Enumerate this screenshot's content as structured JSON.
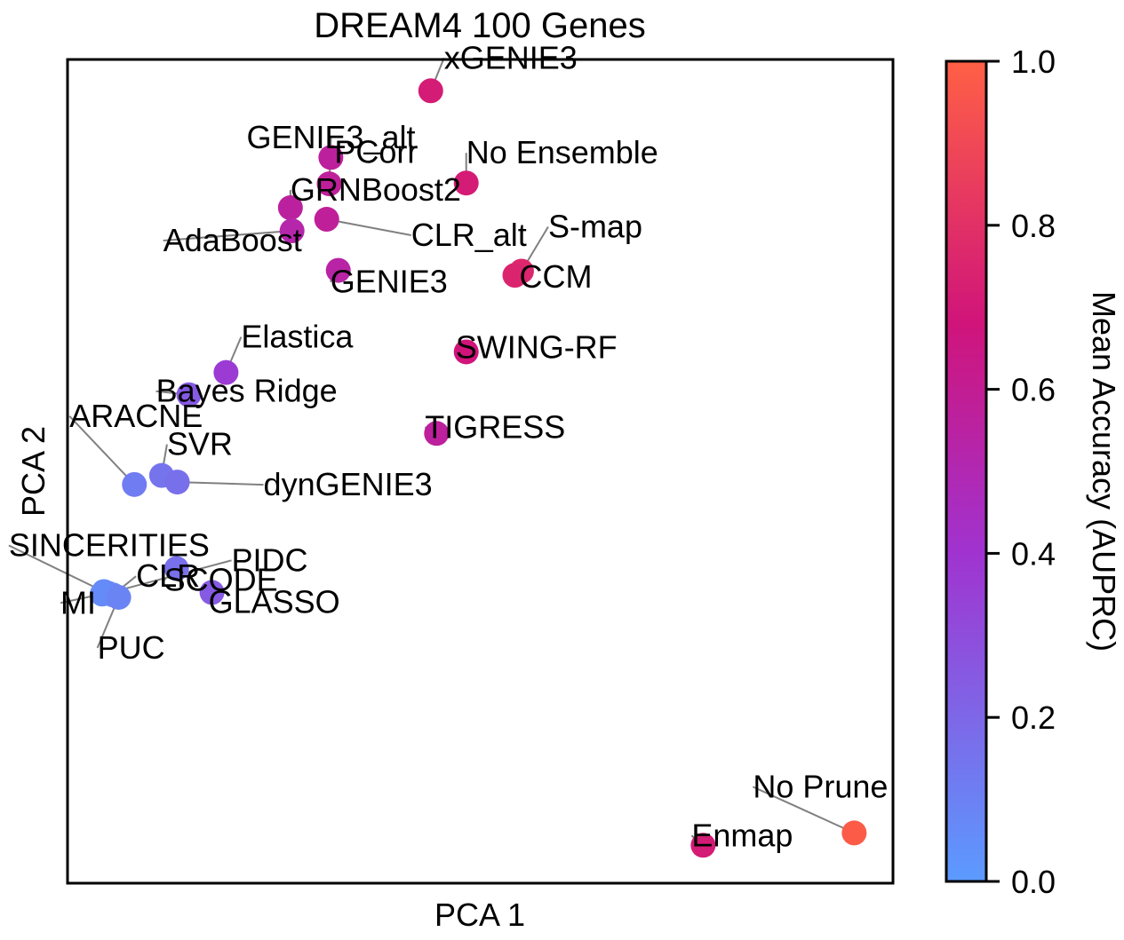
{
  "chart_data": {
    "type": "scatter",
    "title": "DREAM4 100 Genes",
    "xlabel": "PCA 1",
    "ylabel": "PCA 2",
    "grid": false,
    "x_ticks_shown": false,
    "y_ticks_shown": false,
    "xlim": [
      0,
      100
    ],
    "ylim": [
      0,
      100
    ],
    "colorbar": {
      "label": "Mean Accuracy (AUPRC)",
      "range": [
        0.0,
        1.0
      ],
      "ticks": [
        "0.0",
        "0.2",
        "0.4",
        "0.6",
        "0.8",
        "1.0"
      ],
      "colors": [
        "#5b9bff",
        "#a033d0",
        "#d0147a",
        "#ff6045"
      ]
    },
    "points": [
      {
        "name": "xGENIE3",
        "x": 44.0,
        "y": 96.2,
        "value": 0.71
      },
      {
        "name": "GENIE3_alt",
        "x": 31.7,
        "y": 84.9,
        "value": 0.58
      },
      {
        "name": "PCorr",
        "x": 31.9,
        "y": 88.1,
        "value": 0.57
      },
      {
        "name": "No Ensemble",
        "x": 48.3,
        "y": 85.0,
        "value": 0.71
      },
      {
        "name": "GRNBoost2",
        "x": 27.0,
        "y": 82.0,
        "value": 0.56
      },
      {
        "name": "CLR_alt",
        "x": 31.4,
        "y": 80.6,
        "value": 0.58
      },
      {
        "name": "AdaBoost",
        "x": 27.2,
        "y": 79.2,
        "value": 0.52
      },
      {
        "name": "GENIE3",
        "x": 32.8,
        "y": 74.4,
        "value": 0.54
      },
      {
        "name": "S-map",
        "x": 55.0,
        "y": 74.3,
        "value": 0.76
      },
      {
        "name": "CCM",
        "x": 54.2,
        "y": 73.8,
        "value": 0.75
      },
      {
        "name": "Elastica",
        "x": 19.2,
        "y": 62.0,
        "value": 0.37
      },
      {
        "name": "SWING-RF",
        "x": 48.3,
        "y": 64.5,
        "value": 0.68
      },
      {
        "name": "Bayes Ridge",
        "x": 14.7,
        "y": 59.3,
        "value": 0.25
      },
      {
        "name": "TIGRESS",
        "x": 44.7,
        "y": 54.6,
        "value": 0.57
      },
      {
        "name": "ARACNE",
        "x": 8.1,
        "y": 48.4,
        "value": 0.12
      },
      {
        "name": "SVR",
        "x": 11.4,
        "y": 49.5,
        "value": 0.15
      },
      {
        "name": "dynGENIE3",
        "x": 13.3,
        "y": 48.7,
        "value": 0.17
      },
      {
        "name": "SCODE",
        "x": 13.2,
        "y": 38.2,
        "value": 0.17
      },
      {
        "name": "SINCERITIES",
        "x": 4.4,
        "y": 35.4,
        "value": 0.06
      },
      {
        "name": "PIDC",
        "x": 4.9,
        "y": 35.2,
        "value": 0.07
      },
      {
        "name": "CLR",
        "x": 5.5,
        "y": 35.0,
        "value": 0.08
      },
      {
        "name": "GLASSO",
        "x": 17.5,
        "y": 35.3,
        "value": 0.25
      },
      {
        "name": "MI",
        "x": 4.2,
        "y": 35.1,
        "value": 0.06
      },
      {
        "name": "PUC",
        "x": 6.2,
        "y": 34.7,
        "value": 0.09
      },
      {
        "name": "No Prune",
        "x": 95.3,
        "y": 6.1,
        "value": 0.98
      },
      {
        "name": "Enmap",
        "x": 77.0,
        "y": 4.6,
        "value": 0.71
      }
    ]
  }
}
